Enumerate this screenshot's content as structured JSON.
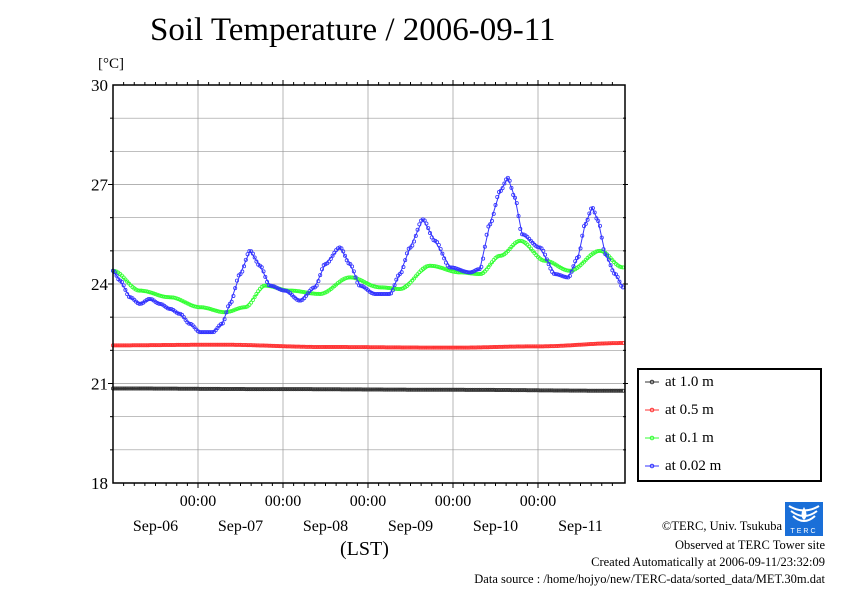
{
  "chart_data": {
    "type": "line",
    "title": "Soil Temperature / 2006-09-11",
    "ylabel": "[°C]",
    "xlabel": "(LST)",
    "ylim": [
      18,
      30
    ],
    "yticks": [
      18,
      21,
      24,
      27,
      30
    ],
    "xlim_hours_from_sep06": [
      0,
      144
    ],
    "x_time_ticks": [
      "00:00",
      "00:00",
      "00:00",
      "00:00",
      "00:00"
    ],
    "x_day_labels": [
      "Sep-06",
      "Sep-07",
      "Sep-08",
      "Sep-09",
      "Sep-10",
      "Sep-11"
    ],
    "grid": true,
    "legend_position": "right-bottom",
    "series": [
      {
        "name": "at 1.0 m",
        "color": "#333333",
        "points": [
          [
            0,
            20.85
          ],
          [
            48,
            20.83
          ],
          [
            96,
            20.81
          ],
          [
            144,
            20.78
          ]
        ]
      },
      {
        "name": "at 0.5 m",
        "color": "#ff3333",
        "points": [
          [
            0,
            22.15
          ],
          [
            30,
            22.17
          ],
          [
            60,
            22.1
          ],
          [
            96,
            22.08
          ],
          [
            120,
            22.12
          ],
          [
            144,
            22.22
          ]
        ]
      },
      {
        "name": "at 0.1 m",
        "color": "#33ff33",
        "points": [
          [
            0,
            24.4
          ],
          [
            7.6,
            23.8
          ],
          [
            16.1,
            23.6
          ],
          [
            24.6,
            23.3
          ],
          [
            31.6,
            23.15
          ],
          [
            37.3,
            23.3
          ],
          [
            42.9,
            23.95
          ],
          [
            50,
            23.8
          ],
          [
            58.4,
            23.7
          ],
          [
            66.9,
            24.2
          ],
          [
            75.4,
            23.9
          ],
          [
            81,
            23.85
          ],
          [
            89.5,
            24.55
          ],
          [
            98,
            24.35
          ],
          [
            103.6,
            24.3
          ],
          [
            109.3,
            24.85
          ],
          [
            115,
            25.3
          ],
          [
            122,
            24.7
          ],
          [
            129,
            24.4
          ],
          [
            137.5,
            25.0
          ],
          [
            144,
            24.5
          ]
        ]
      },
      {
        "name": "at 0.02 m",
        "color": "#3333ff",
        "points": [
          [
            0,
            24.4
          ],
          [
            2,
            24.1
          ],
          [
            4.8,
            23.6
          ],
          [
            7.6,
            23.4
          ],
          [
            10.4,
            23.55
          ],
          [
            13.3,
            23.4
          ],
          [
            16.1,
            23.25
          ],
          [
            18.9,
            23.1
          ],
          [
            21.7,
            22.8
          ],
          [
            24.6,
            22.55
          ],
          [
            28.2,
            22.55
          ],
          [
            30.8,
            22.8
          ],
          [
            33,
            23.4
          ],
          [
            35.9,
            24.3
          ],
          [
            38.7,
            25.0
          ],
          [
            41.5,
            24.55
          ],
          [
            44.3,
            23.95
          ],
          [
            48.6,
            23.8
          ],
          [
            52.8,
            23.5
          ],
          [
            57,
            23.9
          ],
          [
            59.9,
            24.6
          ],
          [
            64.1,
            25.1
          ],
          [
            66.9,
            24.6
          ],
          [
            69.7,
            23.95
          ],
          [
            74,
            23.7
          ],
          [
            78.2,
            23.7
          ],
          [
            81,
            24.3
          ],
          [
            83.9,
            25.1
          ],
          [
            87.5,
            25.95
          ],
          [
            90.9,
            25.3
          ],
          [
            95.2,
            24.5
          ],
          [
            100.8,
            24.35
          ],
          [
            103.6,
            24.45
          ],
          [
            106.4,
            25.8
          ],
          [
            109.3,
            26.8
          ],
          [
            111.5,
            27.2
          ],
          [
            113.5,
            26.6
          ],
          [
            115.5,
            25.5
          ],
          [
            120.5,
            25.1
          ],
          [
            124.8,
            24.3
          ],
          [
            128.5,
            24.2
          ],
          [
            131.3,
            24.8
          ],
          [
            133.3,
            25.8
          ],
          [
            135.3,
            26.3
          ],
          [
            137,
            25.9
          ],
          [
            139,
            24.9
          ],
          [
            141.8,
            24.3
          ],
          [
            144,
            23.9
          ]
        ]
      }
    ]
  },
  "footer": {
    "copyright": "©TERC, Univ. Tsukuba",
    "observed": "Observed at TERC Tower site",
    "created": "Created Automatically at 2006-09-11/23:32:09",
    "source": "Data source : /home/hojyo/new/TERC-data/sorted_data/MET.30m.dat",
    "logo_text": "TERC"
  }
}
